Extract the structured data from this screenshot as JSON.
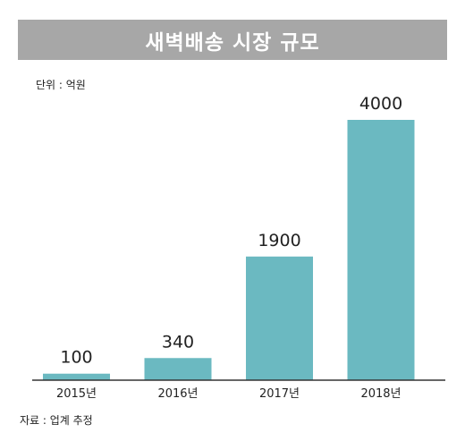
{
  "chart_data": {
    "type": "bar",
    "title": "새벽배송 시장 규모",
    "unit_note": "단위 : 억원",
    "source_note": "자료 : 업계 추정",
    "categories": [
      "2015년",
      "2016년",
      "2017년",
      "2018년"
    ],
    "values": [
      100,
      340,
      1900,
      4000
    ],
    "data_labels": [
      "100",
      "340",
      "1900",
      "4000"
    ],
    "ylim": [
      0,
      4000
    ],
    "grid": false,
    "bar_color": "#6bb9c1",
    "axis_color": "#333333"
  }
}
